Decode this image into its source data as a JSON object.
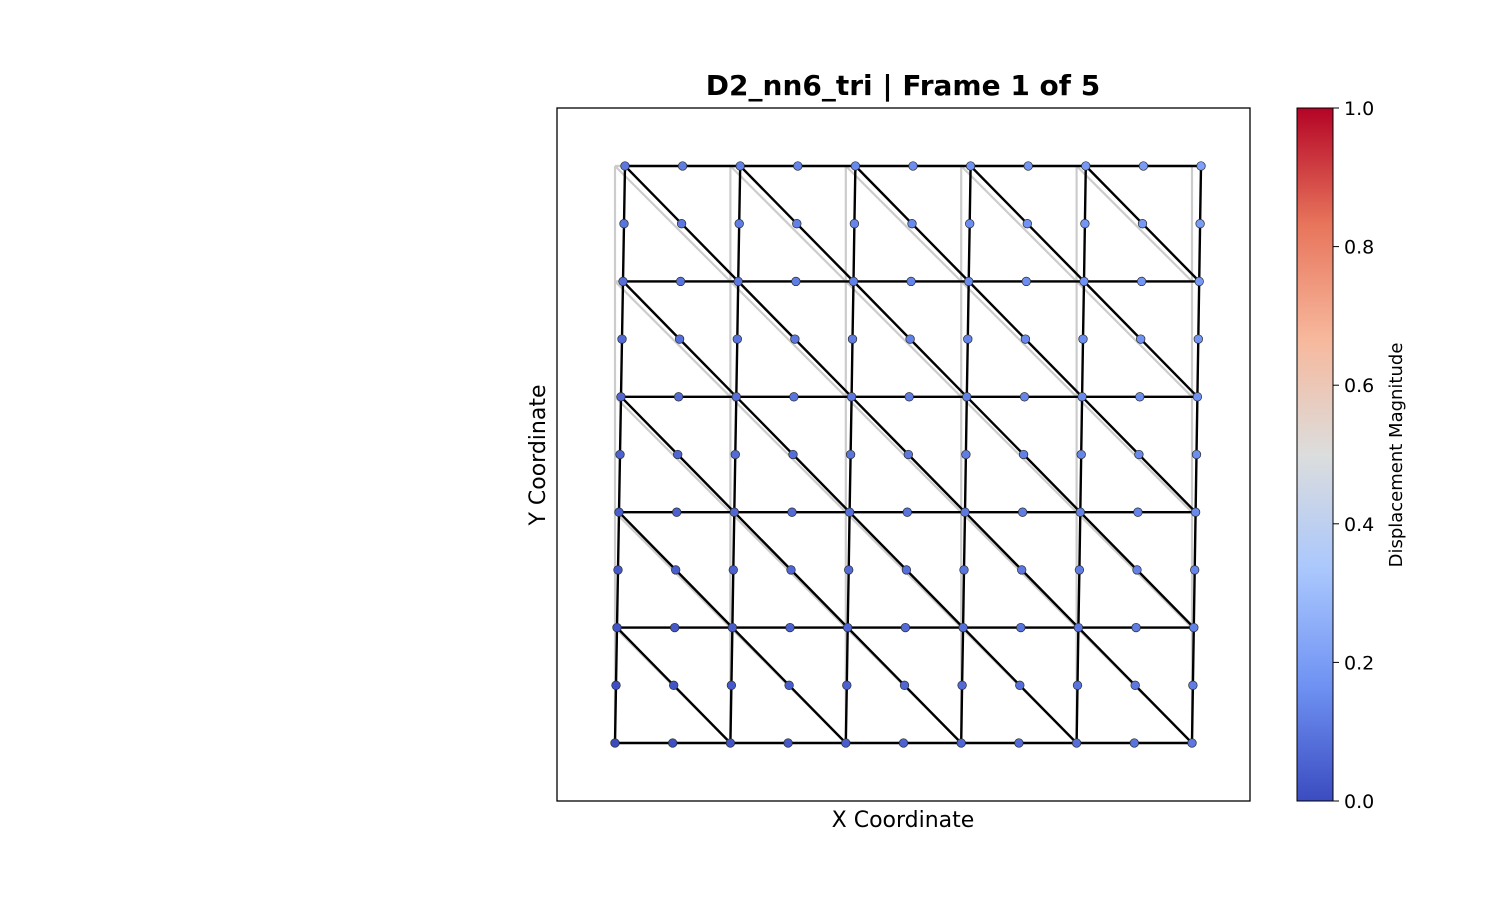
{
  "chart_data": {
    "type": "scatter",
    "title": "D2_nn6_tri  |  Frame 1 of 5",
    "xlabel": "X Coordinate",
    "ylabel": "Y Coordinate",
    "mesh": {
      "element_type": "6-node triangle",
      "elements_x": 5,
      "elements_y": 5,
      "nodes_per_side": 11,
      "reference_grid_color": "#cccccc",
      "deformed_edge_color": "#000000"
    },
    "displacement": {
      "description": "nodal displacement magnitude, increasing linearly in both x and y",
      "min_at_bottom_left": 0.0,
      "max_at_top_right": 0.21
    },
    "colorbar": {
      "label": "Displacement Magnitude",
      "colormap": "coolwarm",
      "range": [
        0.0,
        1.0
      ],
      "ticks": [
        "0.0",
        "0.2",
        "0.4",
        "0.6",
        "0.8",
        "1.0"
      ],
      "stops": [
        "#3b4cc0",
        "#6f92f3",
        "#aac7fd",
        "#dcdddd",
        "#f7b89c",
        "#e7745b",
        "#b40426"
      ]
    },
    "grid": false,
    "legend": "none"
  }
}
